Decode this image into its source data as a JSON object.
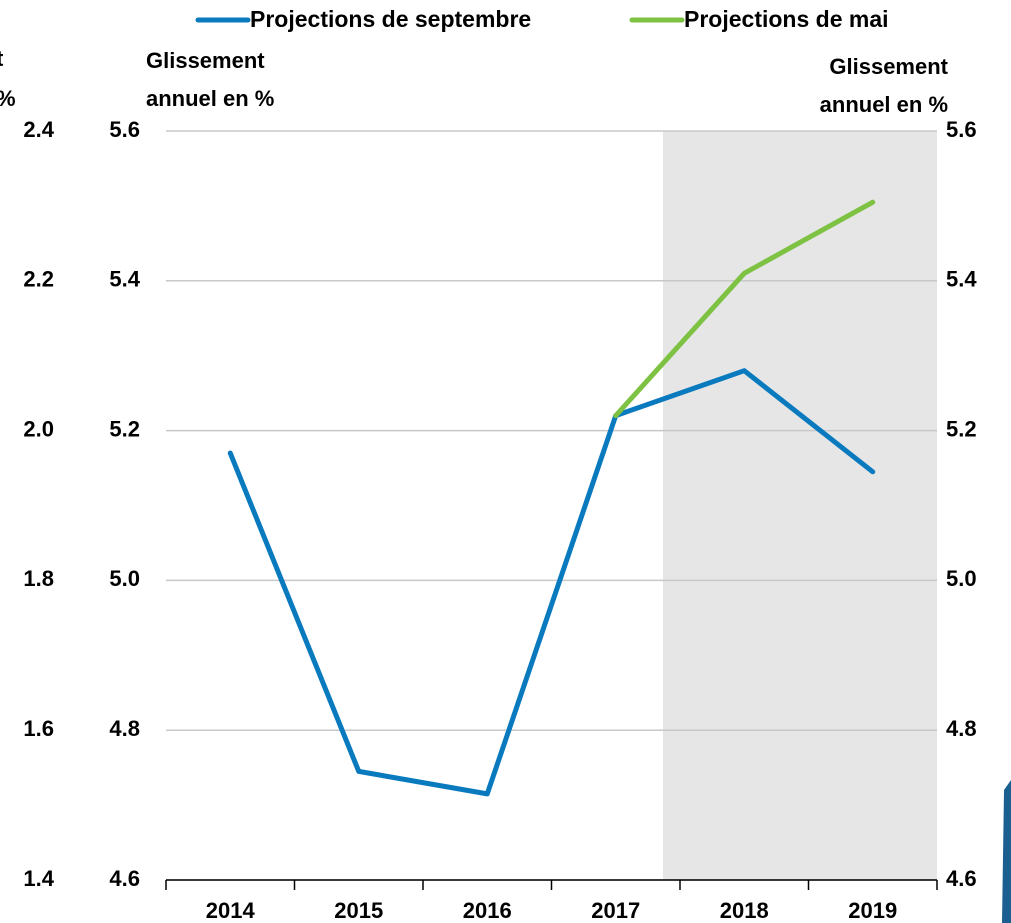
{
  "chart_data": {
    "type": "line",
    "categories": [
      "2014",
      "2015",
      "2016",
      "2017",
      "2018",
      "2019"
    ],
    "series": [
      {
        "name": "Projections de septembre",
        "color": "#0a7abf",
        "values": [
          5.17,
          4.745,
          4.715,
          5.22,
          5.28,
          5.145
        ]
      },
      {
        "name": "Projections de mai",
        "color": "#7dc242",
        "values": [
          null,
          null,
          null,
          5.22,
          5.41,
          5.505
        ]
      }
    ],
    "ylabel_lines": [
      "Glissement",
      "annuel en %"
    ],
    "y2label_lines": [
      "Glissement",
      "annuel en %"
    ],
    "y3label_lines": [
      "t",
      "%"
    ],
    "ylim": [
      4.6,
      5.6
    ],
    "yticks": [
      4.6,
      4.8,
      {
        "value": 5,
        "label": "5.0"
      },
      5.2,
      5.4,
      5.6
    ],
    "y2lim": [
      4.6,
      5.6
    ],
    "y2ticks": [
      4.6,
      4.8,
      {
        "value": 5,
        "label": "5.0"
      },
      5.2,
      5.4,
      5.6
    ],
    "y3lim": [
      1.4,
      2.4
    ],
    "y3ticks": [
      1.4,
      1.6,
      1.8,
      {
        "value": 2,
        "label": "2.0"
      },
      2.2,
      2.4
    ],
    "grid": true,
    "legend": "top"
  }
}
